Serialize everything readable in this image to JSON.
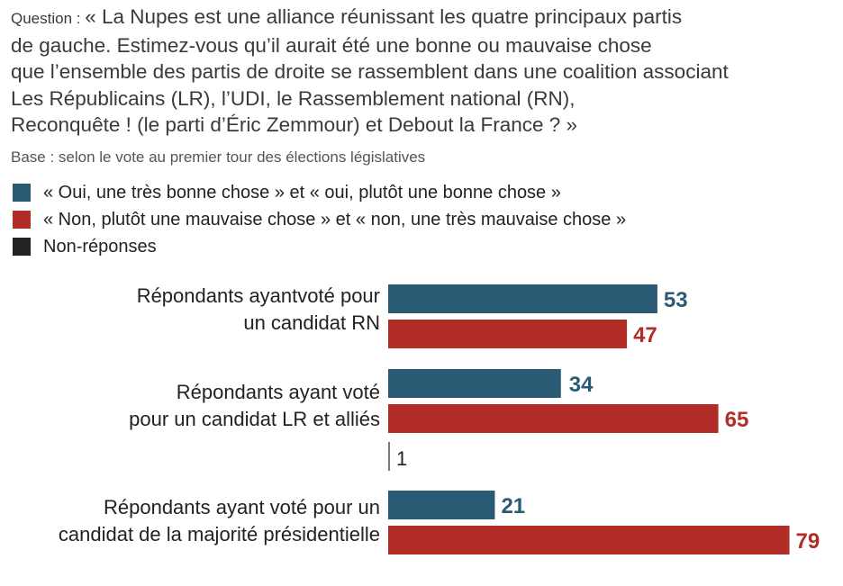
{
  "question": {
    "prefix": "Question : ",
    "lines": [
      "« La Nupes est une alliance réunissant les quatre principaux partis",
      "de gauche. Estimez-vous qu’il aurait été une bonne ou mauvaise chose",
      "que l’ensemble des partis de droite se rassemblent dans une coalition associant",
      "Les Républicains (LR), l’UDI, le Rassemblement national (RN),",
      "Reconquête ! (le parti d’Éric Zemmour) et Debout la France ? »"
    ]
  },
  "base": "Base : selon le vote au premier tour des élections législatives",
  "colors": {
    "oui": "#2b5a74",
    "non": "#b22d28",
    "nr": "#222222"
  },
  "chart_data": {
    "type": "bar",
    "orientation": "horizontal",
    "title": "",
    "xlabel": "",
    "ylabel": "",
    "xlim": [
      0,
      100
    ],
    "grid": false,
    "legend_position": "top-left",
    "categories": [
      [
        "Répondants ayantvoté pour",
        "un candidat RN"
      ],
      [
        "Répondants ayant voté",
        "pour un candidat LR et alliés"
      ],
      [
        "Répondants ayant voté pour un",
        "candidat de la majorité présidentielle"
      ]
    ],
    "series": [
      {
        "key": "oui",
        "name": "« Oui, une très bonne chose » et « oui, plutôt une bonne chose »",
        "color": "#2b5a74",
        "values": [
          53,
          34,
          21
        ]
      },
      {
        "key": "non",
        "name": "« Non, plutôt une mauvaise chose » et « non, une très mauvaise chose »",
        "color": "#b22d28",
        "values": [
          47,
          65,
          79
        ]
      },
      {
        "key": "nr",
        "name": "Non-réponses",
        "color": "#222222",
        "values": [
          0,
          1,
          0
        ]
      }
    ]
  }
}
